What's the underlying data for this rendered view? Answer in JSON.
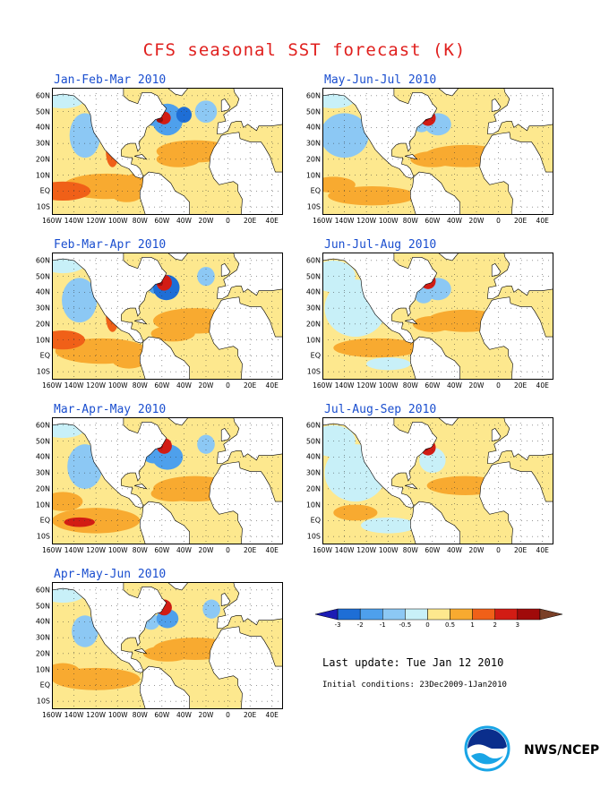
{
  "title": "CFS seasonal SST forecast (K)",
  "panels": [
    {
      "label": "Jan-Feb-Mar 2010",
      "col": 0,
      "row": 0,
      "variant": 0
    },
    {
      "label": "May-Jun-Jul 2010",
      "col": 1,
      "row": 0,
      "variant": 4
    },
    {
      "label": "Feb-Mar-Apr 2010",
      "col": 0,
      "row": 1,
      "variant": 1
    },
    {
      "label": "Jun-Jul-Aug 2010",
      "col": 1,
      "row": 1,
      "variant": 5
    },
    {
      "label": "Mar-Apr-May 2010",
      "col": 0,
      "row": 2,
      "variant": 2
    },
    {
      "label": "Jul-Aug-Sep 2010",
      "col": 1,
      "row": 2,
      "variant": 6
    },
    {
      "label": "Apr-May-Jun 2010",
      "col": 0,
      "row": 3,
      "variant": 3
    }
  ],
  "lat_labels": [
    "60N",
    "50N",
    "40N",
    "30N",
    "20N",
    "10N",
    "EQ",
    "10S"
  ],
  "lon_labels": [
    "160W",
    "140W",
    "120W",
    "100W",
    "80W",
    "60W",
    "40W",
    "20W",
    "0",
    "20E",
    "40E"
  ],
  "colorbar": {
    "ticks": [
      "-3",
      "-2",
      "-1",
      "-0.5",
      "0",
      "0.5",
      "1",
      "2",
      "3"
    ],
    "colors": [
      "#1c1cb4",
      "#1e6ed6",
      "#4ea0ec",
      "#8cc8f4",
      "#c8f0f8",
      "#fde88e",
      "#f8aa30",
      "#f06018",
      "#d21c14",
      "#a00a0a",
      "#7a4028"
    ]
  },
  "last_update": "Last update: Tue Jan 12 2010",
  "initial_conditions": "Initial conditions: 23Dec2009-1Jan2010",
  "logo_text": "NOAA",
  "credit": "NWS/NCEP"
}
